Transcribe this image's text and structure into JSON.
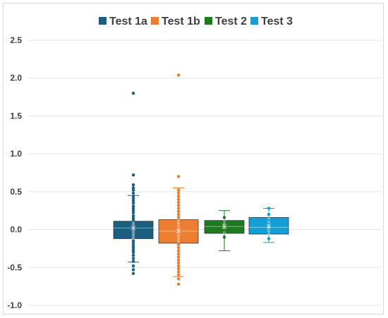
{
  "chart_data": {
    "type": "boxplot",
    "title": "",
    "xlabel": "",
    "ylabel": "",
    "ylim": [
      -1.0,
      2.5
    ],
    "y_ticks": [
      2.5,
      2.0,
      1.5,
      1.0,
      0.5,
      0.0,
      -0.5,
      -1.0
    ],
    "y_tick_labels": [
      "2.5",
      "2.0",
      "1.5",
      "1.0",
      "0.5",
      "0.0",
      "-0.5",
      "-1.0"
    ],
    "grid": true,
    "legend_position": "top",
    "series": [
      {
        "name": "Test 1a",
        "color": "#1b5e80",
        "min": -0.43,
        "q1": -0.12,
        "median": 0.02,
        "mean": 0.02,
        "q3": 0.11,
        "max": 0.45,
        "points": [
          1.8,
          0.72,
          0.59,
          0.55,
          0.52,
          0.48,
          0.44,
          0.41,
          0.38,
          0.35,
          0.31,
          0.28,
          0.25,
          0.22,
          0.18,
          0.15,
          0.12,
          0.09,
          0.06,
          0.03,
          0.0,
          -0.03,
          -0.06,
          -0.09,
          -0.12,
          -0.15,
          -0.18,
          -0.21,
          -0.24,
          -0.27,
          -0.3,
          -0.34,
          -0.38,
          -0.42,
          -0.48,
          -0.53,
          -0.58
        ]
      },
      {
        "name": "Test 1b",
        "color": "#ed7d31",
        "min": -0.62,
        "q1": -0.18,
        "median": -0.02,
        "mean": -0.02,
        "q3": 0.13,
        "max": 0.55,
        "points": [
          2.04,
          0.7,
          0.52,
          0.48,
          0.44,
          0.4,
          0.36,
          0.32,
          0.28,
          0.24,
          0.2,
          0.16,
          0.12,
          0.08,
          0.04,
          0.0,
          -0.04,
          -0.08,
          -0.12,
          -0.16,
          -0.2,
          -0.24,
          -0.28,
          -0.32,
          -0.36,
          -0.4,
          -0.44,
          -0.48,
          -0.52,
          -0.56,
          -0.6,
          -0.65,
          -0.72
        ]
      },
      {
        "name": "Test 2",
        "color": "#1e7a1e",
        "min": -0.28,
        "q1": -0.05,
        "median": 0.04,
        "mean": 0.04,
        "q3": 0.12,
        "max": 0.25,
        "points": [
          0.16,
          0.12,
          0.08,
          0.05,
          0.02,
          -0.04,
          -0.1
        ]
      },
      {
        "name": "Test 3",
        "color": "#139ed6",
        "min": -0.17,
        "q1": -0.06,
        "median": 0.03,
        "mean": 0.05,
        "q3": 0.16,
        "max": 0.28,
        "points": [
          0.28,
          0.2,
          0.15,
          0.1,
          0.05,
          0.02,
          -0.02,
          -0.06,
          -0.12
        ]
      }
    ]
  }
}
